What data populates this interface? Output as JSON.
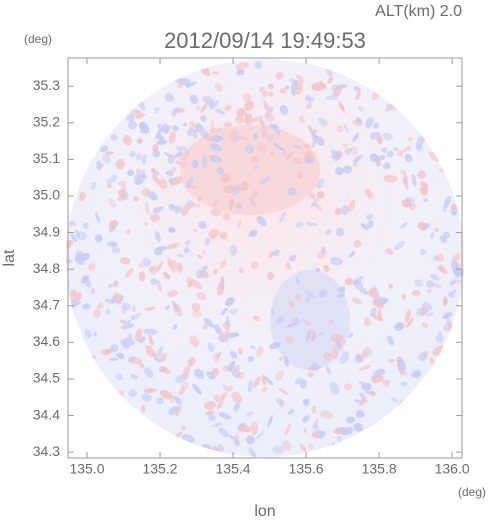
{
  "chart_data": {
    "type": "radar-map",
    "subtitle": "ALT(km) 2.0",
    "title": "2012/09/14 19:49:53",
    "x_label": "lon",
    "y_label": "lat",
    "x_unit": "(deg)",
    "y_unit": "(deg)",
    "xlim": [
      134.948,
      136.027
    ],
    "ylim": [
      34.284,
      35.377
    ],
    "xticks": [
      {
        "value": 135,
        "label": "135.0"
      },
      135.2,
      135.4,
      135.6,
      135.8,
      {
        "value": 136,
        "label": "136.0"
      }
    ],
    "yticks": [
      34.3,
      34.4,
      34.5,
      34.6,
      34.7,
      34.8,
      34.9,
      {
        "value": 35,
        "label": "35.0"
      },
      35.1,
      35.2,
      35.3
    ]
  }
}
